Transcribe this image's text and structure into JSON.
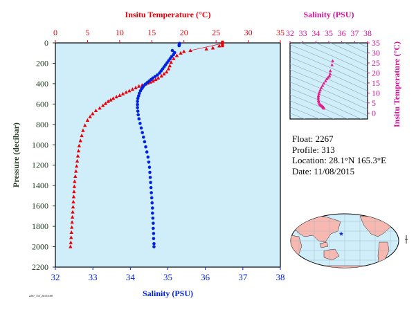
{
  "colors": {
    "temperature": "#e8000b",
    "salinity": "#0022e0",
    "ts_axis": "#d6119a",
    "ts_points": "#e0208a",
    "plot_bg": "#cfeef9",
    "axis_dark": "#1f3a1f",
    "map_ocean": "#cfeef9",
    "map_land": "#f6b8b0",
    "float_marker": "#1d2fd0"
  },
  "info": {
    "float": "Float:  2267",
    "profile": "Profile:  313",
    "location": "Location:  28.1°N  165.3°E",
    "date": "Date:  11/08/2015"
  },
  "footer_text": "2267_313_20151108",
  "chart_data": [
    {
      "type": "scatter",
      "title": "",
      "top_xlabel": "Insitu Temperature (°C)",
      "bottom_xlabel": "Salinity (PSU)",
      "ylabel": "Pressure (decibar)",
      "top_xlim": [
        0,
        35
      ],
      "bottom_xlim": [
        32,
        38
      ],
      "ylim": [
        2200,
        0
      ],
      "y_inverted": true,
      "top_ticks": [
        0,
        5,
        10,
        15,
        20,
        25,
        30,
        35
      ],
      "bottom_ticks": [
        32,
        33,
        34,
        35,
        36,
        37,
        38
      ],
      "y_ticks": [
        0,
        200,
        400,
        600,
        800,
        1000,
        1200,
        1400,
        1600,
        1800,
        2000,
        2200
      ],
      "grid": false,
      "series": [
        {
          "name": "Insitu Temperature (°C)",
          "axis": "top",
          "marker": "triangle",
          "points": [
            [
              26.0,
              5
            ],
            [
              26.0,
              10
            ],
            [
              26.0,
              15
            ],
            [
              25.5,
              30
            ],
            [
              24.5,
              50
            ],
            [
              23.5,
              60
            ],
            [
              21.0,
              75
            ],
            [
              20.0,
              85
            ],
            [
              19.5,
              100
            ],
            [
              18.9,
              125
            ],
            [
              18.4,
              155
            ],
            [
              18.0,
              190
            ],
            [
              17.8,
              225
            ],
            [
              17.6,
              255
            ],
            [
              17.3,
              285
            ],
            [
              16.9,
              305
            ],
            [
              16.5,
              325
            ],
            [
              16.0,
              345
            ],
            [
              15.6,
              360
            ],
            [
              15.2,
              375
            ],
            [
              14.8,
              385
            ],
            [
              14.4,
              395
            ],
            [
              14.0,
              405
            ],
            [
              13.5,
              415
            ],
            [
              13.0,
              425
            ],
            [
              12.5,
              440
            ],
            [
              12.0,
              455
            ],
            [
              11.5,
              470
            ],
            [
              11.0,
              485
            ],
            [
              10.5,
              500
            ],
            [
              10.0,
              515
            ],
            [
              9.5,
              530
            ],
            [
              9.0,
              545
            ],
            [
              8.6,
              560
            ],
            [
              8.2,
              575
            ],
            [
              7.8,
              595
            ],
            [
              7.4,
              615
            ],
            [
              6.9,
              640
            ],
            [
              6.3,
              665
            ],
            [
              5.8,
              695
            ],
            [
              5.4,
              725
            ],
            [
              5.0,
              760
            ],
            [
              4.6,
              810
            ],
            [
              4.3,
              860
            ],
            [
              4.1,
              910
            ],
            [
              3.9,
              960
            ],
            [
              3.7,
              1010
            ],
            [
              3.6,
              1060
            ],
            [
              3.5,
              1110
            ],
            [
              3.4,
              1160
            ],
            [
              3.3,
              1210
            ],
            [
              3.2,
              1260
            ],
            [
              3.1,
              1310
            ],
            [
              3.0,
              1360
            ],
            [
              2.95,
              1410
            ],
            [
              2.9,
              1460
            ],
            [
              2.85,
              1510
            ],
            [
              2.8,
              1560
            ],
            [
              2.75,
              1610
            ],
            [
              2.7,
              1660
            ],
            [
              2.65,
              1710
            ],
            [
              2.6,
              1760
            ],
            [
              2.55,
              1810
            ],
            [
              2.5,
              1860
            ],
            [
              2.45,
              1910
            ],
            [
              2.4,
              1960
            ],
            [
              2.35,
              2000
            ]
          ]
        },
        {
          "name": "Salinity (PSU)",
          "axis": "bottom",
          "marker": "circle",
          "points": [
            [
              35.31,
              5
            ],
            [
              35.31,
              12
            ],
            [
              35.3,
              20
            ],
            [
              35.3,
              28
            ],
            [
              35.12,
              75
            ],
            [
              35.18,
              95
            ],
            [
              35.15,
              115
            ],
            [
              35.1,
              135
            ],
            [
              35.06,
              155
            ],
            [
              35.02,
              175
            ],
            [
              34.98,
              195
            ],
            [
              34.94,
              215
            ],
            [
              34.9,
              235
            ],
            [
              34.86,
              255
            ],
            [
              34.82,
              275
            ],
            [
              34.78,
              295
            ],
            [
              34.72,
              315
            ],
            [
              34.66,
              330
            ],
            [
              34.6,
              345
            ],
            [
              34.55,
              360
            ],
            [
              34.5,
              375
            ],
            [
              34.45,
              390
            ],
            [
              34.4,
              405
            ],
            [
              34.36,
              420
            ],
            [
              34.33,
              435
            ],
            [
              34.3,
              450
            ],
            [
              34.27,
              470
            ],
            [
              34.24,
              495
            ],
            [
              34.22,
              520
            ],
            [
              34.2,
              545
            ],
            [
              34.19,
              575
            ],
            [
              34.19,
              605
            ],
            [
              34.19,
              635
            ],
            [
              34.2,
              670
            ],
            [
              34.21,
              705
            ],
            [
              34.23,
              745
            ],
            [
              34.26,
              790
            ],
            [
              34.29,
              835
            ],
            [
              34.32,
              880
            ],
            [
              34.35,
              925
            ],
            [
              34.38,
              970
            ],
            [
              34.41,
              1020
            ],
            [
              34.44,
              1070
            ],
            [
              34.47,
              1120
            ],
            [
              34.49,
              1170
            ],
            [
              34.51,
              1220
            ],
            [
              34.52,
              1270
            ],
            [
              34.53,
              1320
            ],
            [
              34.54,
              1370
            ],
            [
              34.55,
              1420
            ],
            [
              34.56,
              1470
            ],
            [
              34.57,
              1520
            ],
            [
              34.58,
              1570
            ],
            [
              34.59,
              1620
            ],
            [
              34.59,
              1670
            ],
            [
              34.6,
              1720
            ],
            [
              34.61,
              1770
            ],
            [
              34.61,
              1820
            ],
            [
              34.62,
              1870
            ],
            [
              34.62,
              1920
            ],
            [
              34.63,
              1970
            ],
            [
              34.63,
              2000
            ]
          ]
        }
      ]
    },
    {
      "type": "scatter",
      "title": "",
      "xlabel": "Salinity (PSU)",
      "ylabel": "Insitu Temperature (°C)",
      "xlim": [
        32,
        38
      ],
      "ylim": [
        -3,
        35
      ],
      "x_ticks": [
        32,
        33,
        34,
        35,
        36,
        37,
        38
      ],
      "y_ticks": [
        0,
        5,
        10,
        15,
        20,
        25,
        30,
        35
      ],
      "series": [
        {
          "name": "T-S",
          "marker": "triangle",
          "points": [
            [
              35.3,
              26.0
            ],
            [
              35.25,
              24.0
            ],
            [
              35.12,
              21.0
            ],
            [
              35.1,
              19.5
            ],
            [
              35.05,
              18.5
            ],
            [
              34.95,
              17.8
            ],
            [
              34.85,
              17.0
            ],
            [
              34.75,
              16.0
            ],
            [
              34.62,
              14.8
            ],
            [
              34.52,
              13.7
            ],
            [
              34.42,
              12.6
            ],
            [
              34.34,
              11.5
            ],
            [
              34.28,
              10.5
            ],
            [
              34.23,
              9.5
            ],
            [
              34.2,
              8.6
            ],
            [
              34.19,
              7.8
            ],
            [
              34.19,
              7.0
            ],
            [
              34.2,
              6.2
            ],
            [
              34.23,
              5.4
            ],
            [
              34.28,
              4.6
            ],
            [
              34.33,
              4.2
            ],
            [
              34.38,
              3.9
            ],
            [
              34.44,
              3.6
            ],
            [
              34.49,
              3.4
            ],
            [
              34.52,
              3.2
            ],
            [
              34.55,
              3.0
            ],
            [
              34.57,
              2.85
            ],
            [
              34.59,
              2.7
            ],
            [
              34.61,
              2.55
            ],
            [
              34.62,
              2.45
            ],
            [
              34.63,
              2.35
            ]
          ]
        }
      ]
    }
  ]
}
